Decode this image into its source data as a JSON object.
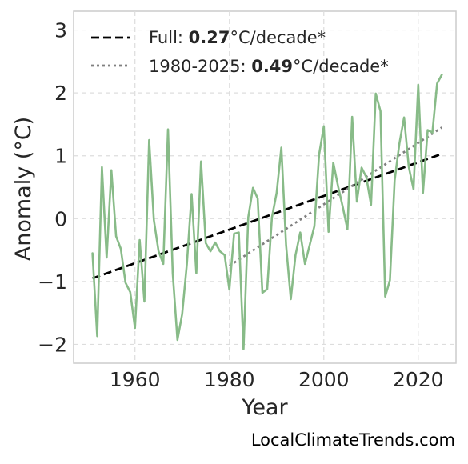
{
  "chart_data": {
    "type": "line",
    "title": "",
    "xlabel": "Year",
    "ylabel": "Anomaly (°C)",
    "xlim": [
      1947,
      2028
    ],
    "ylim": [
      -2.3,
      3.3
    ],
    "xticks": [
      1960,
      1980,
      2000,
      2020
    ],
    "yticks": [
      3,
      2,
      1,
      0,
      -1,
      -2
    ],
    "ytick_labels": [
      "3",
      "2",
      "1",
      "0",
      "−1",
      "−2"
    ],
    "grid": true,
    "legend_position": "top-left",
    "series": [
      {
        "color": "#88bb88",
        "x": [
          1951,
          1952,
          1953,
          1954,
          1955,
          1956,
          1957,
          1958,
          1959,
          1960,
          1961,
          1962,
          1963,
          1964,
          1965,
          1966,
          1967,
          1968,
          1969,
          1970,
          1971,
          1972,
          1973,
          1974,
          1975,
          1976,
          1977,
          1978,
          1979,
          1980,
          1981,
          1982,
          1983,
          1984,
          1985,
          1986,
          1987,
          1988,
          1989,
          1990,
          1991,
          1992,
          1993,
          1994,
          1995,
          1996,
          1997,
          1998,
          1999,
          2000,
          2001,
          2002,
          2003,
          2004,
          2005,
          2006,
          2007,
          2008,
          2009,
          2010,
          2011,
          2012,
          2013,
          2014,
          2015,
          2016,
          2017,
          2018,
          2019,
          2020,
          2021,
          2022,
          2023,
          2024,
          2025
        ],
        "y": [
          -0.55,
          -1.87,
          0.82,
          -0.62,
          0.77,
          -0.28,
          -0.48,
          -1.02,
          -1.17,
          -1.74,
          -0.34,
          -1.32,
          1.25,
          -0.02,
          -0.52,
          -0.72,
          1.42,
          -0.87,
          -1.93,
          -1.52,
          -0.72,
          0.39,
          -0.87,
          0.91,
          -0.39,
          -0.52,
          -0.38,
          -0.52,
          -0.58,
          -1.13,
          -0.24,
          -0.22,
          -2.08,
          0.02,
          0.49,
          0.32,
          -1.18,
          -1.12,
          0.02,
          0.41,
          1.13,
          -0.42,
          -1.28,
          -0.58,
          -0.22,
          -0.72,
          -0.42,
          -0.12,
          1.02,
          1.47,
          -0.21,
          0.89,
          0.52,
          0.19,
          -0.17,
          1.62,
          0.27,
          0.81,
          0.66,
          0.22,
          1.99,
          1.71,
          -1.24,
          -0.98,
          0.61,
          1.19,
          1.61,
          0.82,
          0.47,
          2.13,
          0.41,
          1.41,
          1.37,
          2.15,
          2.29
        ]
      }
    ],
    "trends": [
      {
        "style": "dashed",
        "color": "#000000",
        "x": [
          1951,
          2025
        ],
        "y": [
          -0.95,
          1.03
        ]
      },
      {
        "style": "dotted",
        "color": "#808080",
        "x": [
          1980,
          2025
        ],
        "y": [
          -0.75,
          1.45
        ]
      }
    ],
    "legend": [
      {
        "prefix": "Full: ",
        "value": "0.27",
        "suffix": "°C/decade*"
      },
      {
        "prefix": "1980-2025: ",
        "value": "0.49",
        "suffix": "°C/decade*"
      }
    ]
  },
  "watermark": "LocalClimateTrends.com"
}
